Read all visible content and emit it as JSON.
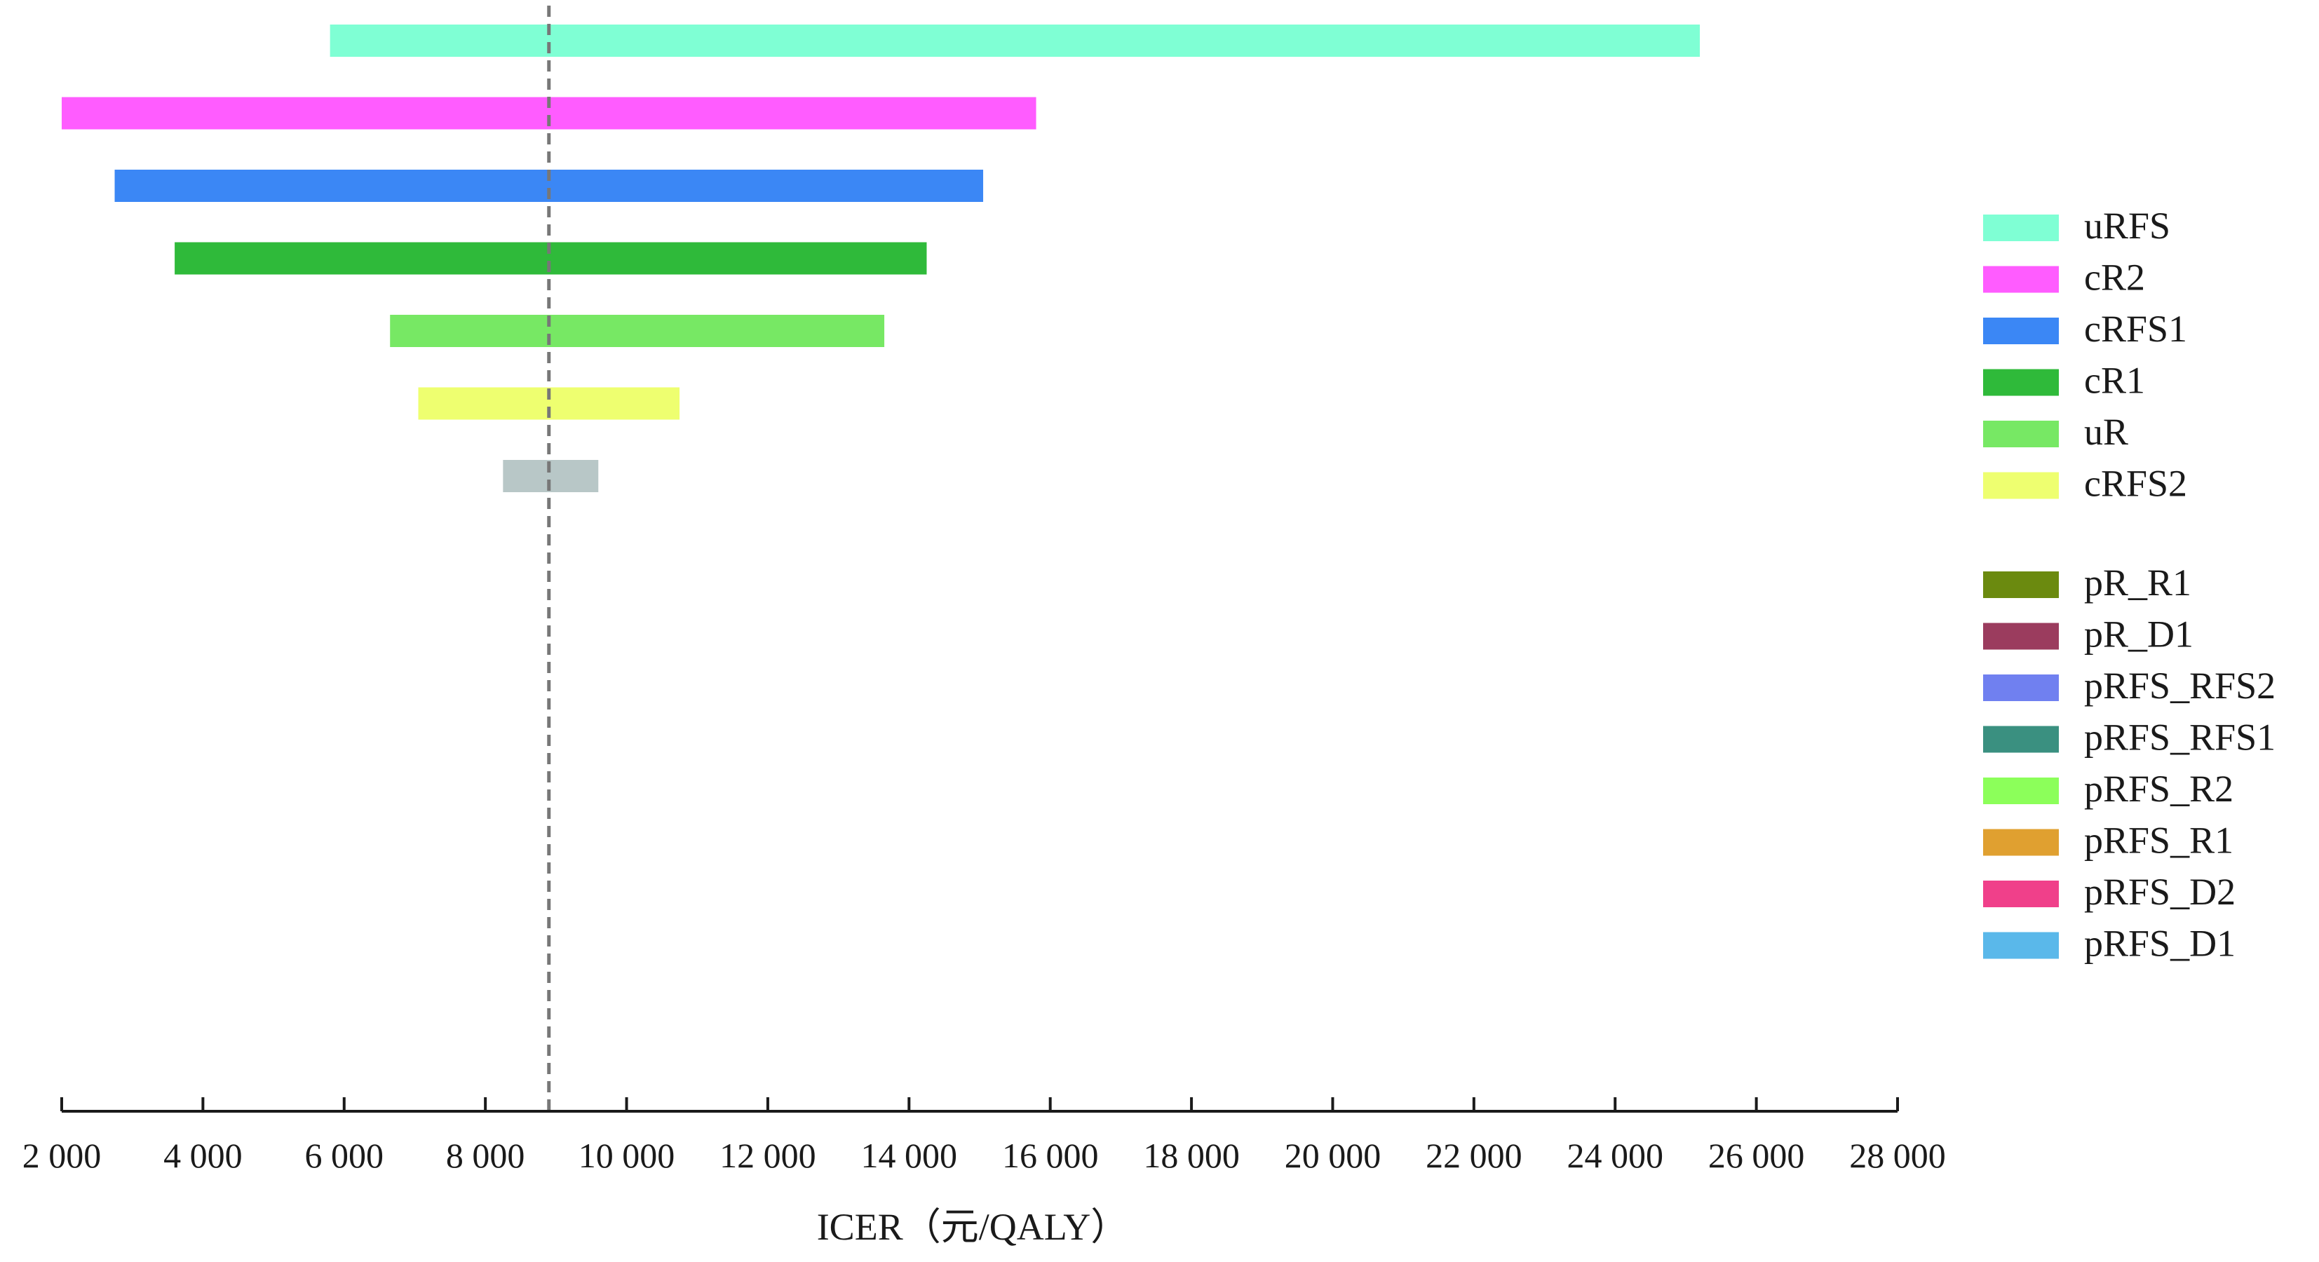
{
  "chart_data": {
    "type": "bar",
    "orientation": "horizontal",
    "variant": "tornado",
    "xlabel": "ICER（元/QALY）",
    "xlim": [
      2000,
      28000
    ],
    "xticks": [
      2000,
      4000,
      6000,
      8000,
      10000,
      12000,
      14000,
      16000,
      18000,
      20000,
      22000,
      24000,
      26000,
      28000
    ],
    "xtick_labels": [
      "2 000",
      "4 000",
      "6 000",
      "8 000",
      "10 000",
      "12 000",
      "14 000",
      "16 000",
      "18 000",
      "20 000",
      "22 000",
      "24 000",
      "26 000",
      "28 000"
    ],
    "base_value": 8900,
    "grid": false,
    "legend_position": "right",
    "bars": [
      {
        "name": "uRFS",
        "low": 5800,
        "high": 25200,
        "color": "#7fffd4"
      },
      {
        "name": "cR2",
        "low": 2000,
        "high": 15800,
        "color": "#ff5cff"
      },
      {
        "name": "cRFS1",
        "low": 2750,
        "high": 15050,
        "color": "#3b87f5"
      },
      {
        "name": "cR1",
        "low": 3600,
        "high": 14250,
        "color": "#2fba3a"
      },
      {
        "name": "uR",
        "low": 6650,
        "high": 13650,
        "color": "#77e864"
      },
      {
        "name": "cRFS2",
        "low": 7050,
        "high": 10750,
        "color": "#eeff70"
      },
      {
        "name": "",
        "low": 8250,
        "high": 9600,
        "color": "#b8c7c7"
      }
    ],
    "legend": [
      {
        "label": "uRFS",
        "color": "#7fffd4"
      },
      {
        "label": "cR2",
        "color": "#ff5cff"
      },
      {
        "label": "cRFS1",
        "color": "#3b87f5"
      },
      {
        "label": "cR1",
        "color": "#2fba3a"
      },
      {
        "label": "uR",
        "color": "#77e864"
      },
      {
        "label": "cRFS2",
        "color": "#eeff70"
      },
      {
        "label": "pR_R1",
        "color": "#6b8a0f"
      },
      {
        "label": "pR_D1",
        "color": "#9b3c5e"
      },
      {
        "label": "pRFS_RFS2",
        "color": "#7080f0"
      },
      {
        "label": "pRFS_RFS1",
        "color": "#3a9080"
      },
      {
        "label": "pRFS_R2",
        "color": "#8cff5a"
      },
      {
        "label": "pRFS_R1",
        "color": "#e0a030"
      },
      {
        "label": "pRFS_D2",
        "color": "#f0408a"
      },
      {
        "label": "pRFS_D1",
        "color": "#5ab8ea"
      }
    ]
  }
}
